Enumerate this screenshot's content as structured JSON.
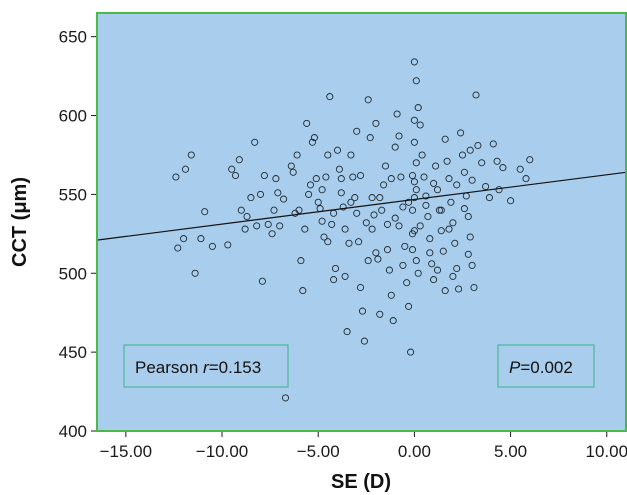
{
  "chart_data": {
    "type": "scatter",
    "xlabel": "SE (D)",
    "ylabel": "CCT (μm)",
    "xlim": [
      -16.5,
      11.0
    ],
    "ylim": [
      400,
      665
    ],
    "x_ticks": [
      -15,
      -10,
      -5,
      0,
      5,
      10
    ],
    "x_tick_labels": [
      "−15.00",
      "−10.00",
      "−5.00",
      "0.00",
      "5.00",
      "10.00"
    ],
    "y_ticks": [
      400,
      450,
      500,
      550,
      600,
      650
    ],
    "y_tick_labels": [
      "400",
      "450",
      "500",
      "550",
      "600",
      "650"
    ],
    "grid": false,
    "colors": {
      "plot_background": "#a9cdec",
      "plot_border": "#4cb848",
      "point_stroke": "#1f2b33",
      "fit_line": "#111111",
      "annotation_border": "#4cb898"
    },
    "fit_line": {
      "x": [
        -16.5,
        11.0
      ],
      "y": [
        521,
        564
      ]
    },
    "annotations": {
      "pearson": {
        "label_prefix": "Pearson ",
        "symbol": "r",
        "value": "=0.153",
        "position": "bottom-left"
      },
      "pvalue": {
        "symbol": "P",
        "value": "=0.002",
        "position": "bottom-right"
      }
    },
    "points": [
      [
        -12.4,
        561
      ],
      [
        -12.3,
        516
      ],
      [
        -12.0,
        522
      ],
      [
        -11.6,
        575
      ],
      [
        -11.9,
        566
      ],
      [
        -11.4,
        500
      ],
      [
        -11.1,
        522
      ],
      [
        -10.9,
        539
      ],
      [
        -10.5,
        517
      ],
      [
        -9.7,
        518
      ],
      [
        -9.5,
        566
      ],
      [
        -9.3,
        562
      ],
      [
        -9.1,
        572
      ],
      [
        -9.0,
        540
      ],
      [
        -8.7,
        536
      ],
      [
        -8.5,
        548
      ],
      [
        -8.3,
        583
      ],
      [
        -8.2,
        530
      ],
      [
        -8.0,
        550
      ],
      [
        -7.9,
        495
      ],
      [
        -7.8,
        562
      ],
      [
        -7.6,
        531
      ],
      [
        -7.4,
        525
      ],
      [
        -7.3,
        540
      ],
      [
        -7.1,
        551
      ],
      [
        -7.0,
        530
      ],
      [
        -6.8,
        547
      ],
      [
        -6.7,
        421
      ],
      [
        -6.4,
        568
      ],
      [
        -6.3,
        564
      ],
      [
        -6.1,
        575
      ],
      [
        -6.0,
        540
      ],
      [
        -5.9,
        508
      ],
      [
        -5.8,
        489
      ],
      [
        -5.7,
        528
      ],
      [
        -5.6,
        595
      ],
      [
        -5.5,
        550
      ],
      [
        -5.3,
        583
      ],
      [
        -5.2,
        586
      ],
      [
        -5.1,
        560
      ],
      [
        -5.0,
        545
      ],
      [
        -4.9,
        541
      ],
      [
        -4.8,
        533
      ],
      [
        -4.7,
        523
      ],
      [
        -4.6,
        561
      ],
      [
        -4.5,
        575
      ],
      [
        -4.4,
        612
      ],
      [
        -4.3,
        531
      ],
      [
        -4.2,
        496
      ],
      [
        -4.1,
        503
      ],
      [
        -4.0,
        578
      ],
      [
        -3.9,
        566
      ],
      [
        -3.8,
        551
      ],
      [
        -3.7,
        542
      ],
      [
        -3.6,
        528
      ],
      [
        -3.5,
        463
      ],
      [
        -3.4,
        519
      ],
      [
        -3.3,
        575
      ],
      [
        -3.2,
        561
      ],
      [
        -3.1,
        548
      ],
      [
        -3.0,
        538
      ],
      [
        -2.9,
        520
      ],
      [
        -2.8,
        491
      ],
      [
        -2.7,
        476
      ],
      [
        -2.6,
        457
      ],
      [
        -2.5,
        532
      ],
      [
        -2.4,
        610
      ],
      [
        -2.3,
        586
      ],
      [
        -2.2,
        548
      ],
      [
        -2.1,
        537
      ],
      [
        -2.0,
        513
      ],
      [
        -1.9,
        509
      ],
      [
        -1.8,
        474
      ],
      [
        -1.7,
        540
      ],
      [
        -1.6,
        556
      ],
      [
        -1.5,
        568
      ],
      [
        -1.4,
        531
      ],
      [
        -1.3,
        502
      ],
      [
        -1.2,
        486
      ],
      [
        -1.1,
        470
      ],
      [
        -1.0,
        535
      ],
      [
        -0.9,
        601
      ],
      [
        -0.8,
        587
      ],
      [
        -0.7,
        561
      ],
      [
        -0.6,
        542
      ],
      [
        -0.5,
        517
      ],
      [
        -0.4,
        494
      ],
      [
        -0.3,
        479
      ],
      [
        -0.2,
        450
      ],
      [
        -0.1,
        525
      ],
      [
        0.0,
        634
      ],
      [
        0.1,
        622
      ],
      [
        0.2,
        605
      ],
      [
        0.3,
        594
      ],
      [
        0.4,
        575
      ],
      [
        0.5,
        561
      ],
      [
        0.6,
        549
      ],
      [
        0.7,
        536
      ],
      [
        0.8,
        522
      ],
      [
        0.9,
        506
      ],
      [
        1.0,
        496
      ],
      [
        1.1,
        568
      ],
      [
        1.2,
        553
      ],
      [
        1.3,
        540
      ],
      [
        1.4,
        527
      ],
      [
        1.5,
        514
      ],
      [
        1.6,
        489
      ],
      [
        1.7,
        571
      ],
      [
        1.8,
        560
      ],
      [
        1.9,
        545
      ],
      [
        2.0,
        532
      ],
      [
        2.1,
        519
      ],
      [
        2.2,
        503
      ],
      [
        2.3,
        490
      ],
      [
        2.4,
        589
      ],
      [
        2.5,
        575
      ],
      [
        2.6,
        564
      ],
      [
        2.7,
        549
      ],
      [
        2.8,
        536
      ],
      [
        2.9,
        523
      ],
      [
        3.0,
        505
      ],
      [
        3.1,
        491
      ],
      [
        3.2,
        613
      ],
      [
        3.3,
        581
      ],
      [
        3.5,
        570
      ],
      [
        3.7,
        555
      ],
      [
        3.9,
        548
      ],
      [
        4.1,
        582
      ],
      [
        4.3,
        571
      ],
      [
        4.6,
        567
      ],
      [
        5.0,
        546
      ],
      [
        5.5,
        566
      ],
      [
        5.8,
        560
      ],
      [
        6.0,
        572
      ],
      [
        -4.8,
        553
      ],
      [
        -4.2,
        538
      ],
      [
        -3.8,
        560
      ],
      [
        -3.3,
        545
      ],
      [
        -2.8,
        562
      ],
      [
        -2.2,
        528
      ],
      [
        -1.8,
        548
      ],
      [
        -1.2,
        560
      ],
      [
        -0.8,
        530
      ],
      [
        -0.3,
        545
      ],
      [
        0.0,
        558
      ],
      [
        0.3,
        530
      ],
      [
        0.6,
        543
      ],
      [
        1.0,
        557
      ],
      [
        1.4,
        540
      ],
      [
        1.8,
        528
      ],
      [
        2.2,
        556
      ],
      [
        2.6,
        541
      ],
      [
        3.0,
        559
      ],
      [
        -4.5,
        520
      ],
      [
        -3.6,
        498
      ],
      [
        -2.4,
        508
      ],
      [
        -1.4,
        515
      ],
      [
        -0.6,
        505
      ],
      [
        0.2,
        500
      ],
      [
        0.8,
        513
      ],
      [
        1.2,
        502
      ],
      [
        2.0,
        498
      ],
      [
        2.8,
        512
      ],
      [
        -0.1,
        540
      ],
      [
        0.0,
        548
      ],
      [
        0.1,
        553
      ],
      [
        0.0,
        527
      ],
      [
        -0.1,
        562
      ],
      [
        0.1,
        570
      ],
      [
        0.0,
        583
      ],
      [
        -0.1,
        515
      ],
      [
        0.1,
        508
      ],
      [
        0.0,
        597
      ],
      [
        -6.2,
        538
      ],
      [
        -5.4,
        556
      ],
      [
        -3.0,
        590
      ],
      [
        -2.0,
        595
      ],
      [
        -1.0,
        580
      ],
      [
        1.6,
        585
      ],
      [
        2.9,
        578
      ],
      [
        4.4,
        553
      ],
      [
        -7.2,
        560
      ],
      [
        -8.8,
        528
      ]
    ]
  }
}
